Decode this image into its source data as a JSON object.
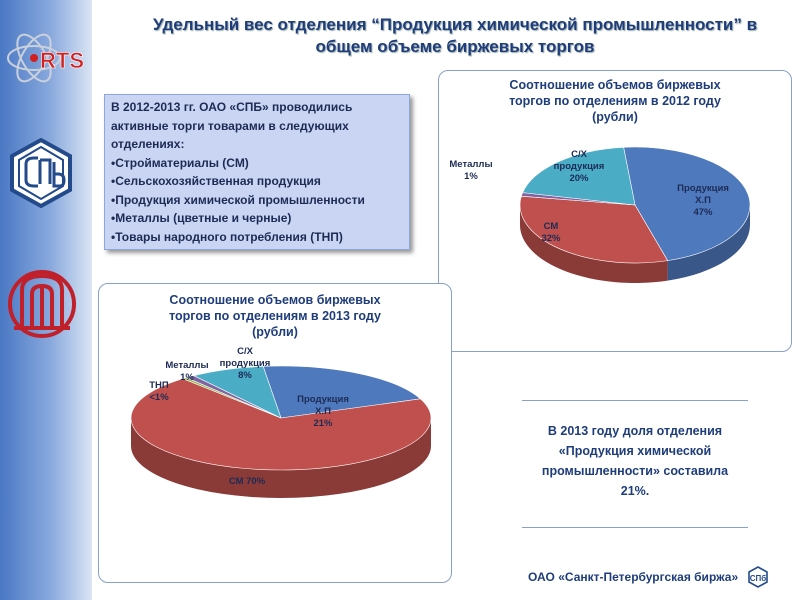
{
  "header": {
    "title_line1": "Удельный вес отделения “Продукция химической промышленности” в",
    "title_line2": "общем  объеме биржевых торгов"
  },
  "sidebar": {
    "logo_text": "RTS"
  },
  "infobox": {
    "lines": [
      "В 2012-2013 гг. ОАО «СПБ» проводились",
      "активные торги товарами в следующих",
      "отделениях:",
      "•Стройматериалы (СМ)",
      "•Сельскохозяйственная продукция",
      "•Продукция химической промышленности",
      "•Металлы (цветные и черные)",
      "•Товары народного потребления (ТНП)"
    ]
  },
  "chart_data": [
    {
      "type": "pie",
      "title_lines": [
        "Соотношение объемов биржевых",
        "торгов по отделениям в 2012 году",
        "(рубли)"
      ],
      "slices": [
        {
          "label_lines": [
            "Продукция",
            "Х.П"
          ],
          "value_label": "47%",
          "value": 47,
          "color": "#4f79bd"
        },
        {
          "label_lines": [
            "СМ"
          ],
          "value_label": "32%",
          "value": 32,
          "color": "#c0504d"
        },
        {
          "label_lines": [
            "Металлы"
          ],
          "value_label": "1%",
          "value": 1,
          "color": "#8064a2"
        },
        {
          "label_lines": [
            "С/Х",
            "продукция"
          ],
          "value_label": "20%",
          "value": 20,
          "color": "#4bacc6"
        }
      ]
    },
    {
      "type": "pie",
      "title_lines": [
        "Соотношение  объемов биржевых",
        "торгов по отделениям в 2013 году",
        "(рубли)"
      ],
      "slices": [
        {
          "label_lines": [
            "Продукция",
            "Х.П"
          ],
          "value_label": "21%",
          "value": 21,
          "color": "#4f79bd"
        },
        {
          "label_lines": [
            "СМ"
          ],
          "value_label": "70%",
          "value": 70,
          "color": "#c0504d"
        },
        {
          "label_lines": [
            "ТНП"
          ],
          "value_label": "<1%",
          "value": 0.5,
          "color": "#9bbb59"
        },
        {
          "label_lines": [
            "Металлы"
          ],
          "value_label": "1%",
          "value": 1,
          "color": "#8064a2"
        },
        {
          "label_lines": [
            "С/Х",
            "продукция"
          ],
          "value_label": "8%",
          "value": 8,
          "color": "#4bacc6"
        }
      ]
    }
  ],
  "conclusion": {
    "lines": [
      "В 2013 году доля отделения",
      "«Продукция химической",
      "промышленности» составила",
      "21%."
    ]
  },
  "footer": {
    "text": "ОАО «Санкт-Петербургская биржа»"
  }
}
